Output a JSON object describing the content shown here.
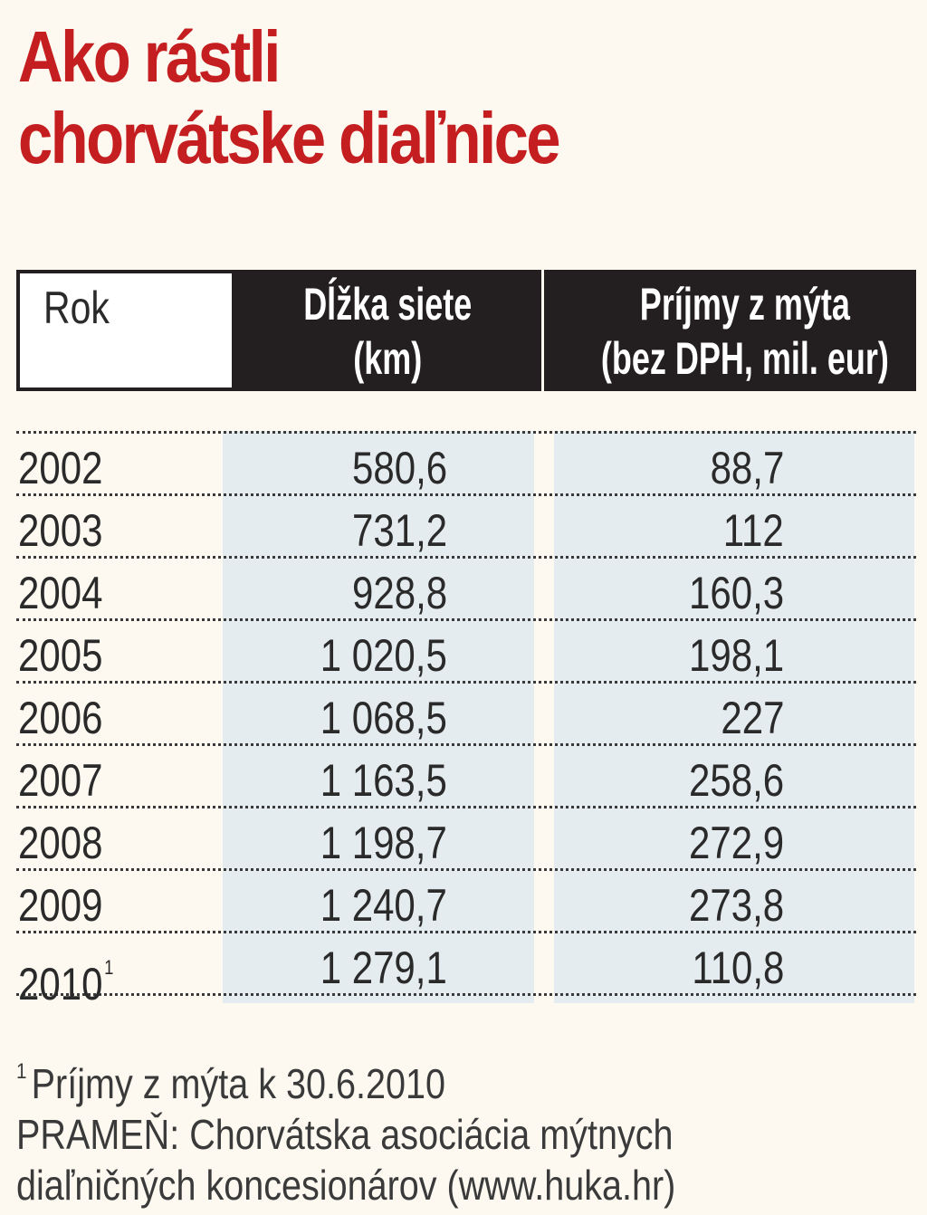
{
  "title": {
    "line1": "Ako rástli",
    "line2": "chorvátske diaľnice"
  },
  "colors": {
    "title": "#c41e20",
    "header_bg": "#231f20",
    "column_shade": "#e4ecef",
    "background": "#fdf9f0"
  },
  "chart_data": {
    "type": "table",
    "title": "Ako rástli chorvátske diaľnice",
    "columns": [
      {
        "label": "Rok"
      },
      {
        "label_line1": "Dĺžka siete",
        "label_line2": "(km)"
      },
      {
        "label_line1": "Príjmy z mýta",
        "label_line2": "(bez DPH, mil. eur)"
      }
    ],
    "rows": [
      {
        "year": "2002",
        "marker": "",
        "length_km": "580,6",
        "toll_revenue": "88,7"
      },
      {
        "year": "2003",
        "marker": "",
        "length_km": "731,2",
        "toll_revenue": "112"
      },
      {
        "year": "2004",
        "marker": "",
        "length_km": "928,8",
        "toll_revenue": "160,3"
      },
      {
        "year": "2005",
        "marker": "",
        "length_km": "1 020,5",
        "toll_revenue": "198,1"
      },
      {
        "year": "2006",
        "marker": "",
        "length_km": "1 068,5",
        "toll_revenue": "227"
      },
      {
        "year": "2007",
        "marker": "",
        "length_km": "1 163,5",
        "toll_revenue": "258,6"
      },
      {
        "year": "2008",
        "marker": "",
        "length_km": "1 198,7",
        "toll_revenue": "272,9"
      },
      {
        "year": "2009",
        "marker": "",
        "length_km": "1 240,7",
        "toll_revenue": "273,8"
      },
      {
        "year": "2010",
        "marker": "1",
        "length_km": "1 279,1",
        "toll_revenue": "110,8"
      }
    ]
  },
  "footnote": {
    "marker": "1",
    "text": "Príjmy z mýta k 30.6.2010",
    "source_line1": "PRAMEŇ: Chorvátska asociácia mýtnych",
    "source_line2": "diaľničných koncesionárov (www.huka.hr)"
  }
}
